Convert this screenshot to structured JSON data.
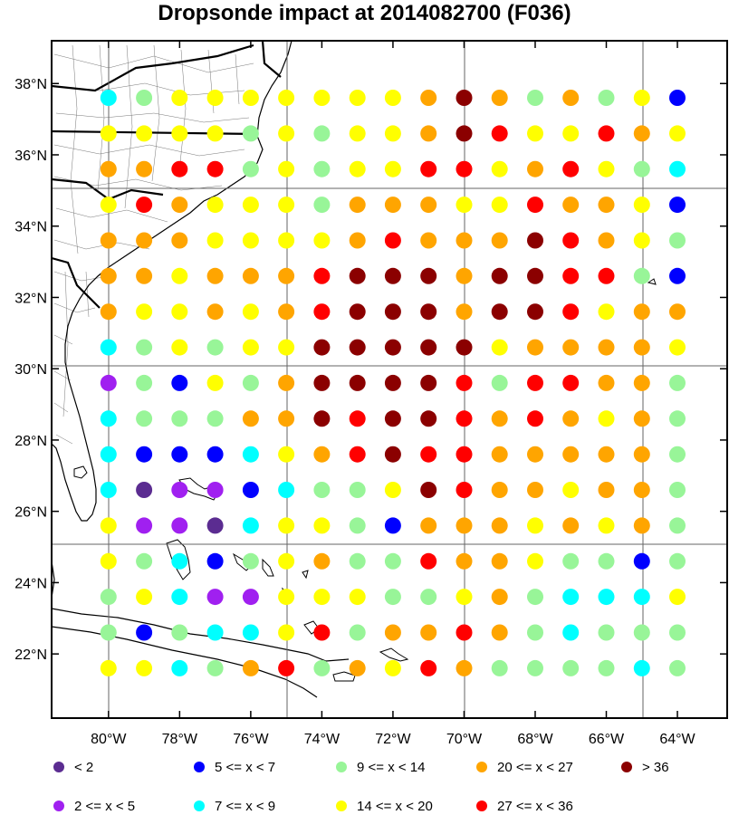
{
  "title": "Dropsonde impact at 2014082700 (F036)",
  "axes": {
    "lon_labels": [
      "80°W",
      "78°W",
      "76°W",
      "74°W",
      "72°W",
      "70°W",
      "68°W",
      "66°W",
      "64°W"
    ],
    "lon_values": [
      -80,
      -78,
      -76,
      -74,
      -72,
      -70,
      -68,
      -66,
      -64
    ],
    "lat_labels": [
      "22°N",
      "24°N",
      "26°N",
      "28°N",
      "30°N",
      "32°N",
      "34°N",
      "36°N",
      "38°N"
    ],
    "lat_values": [
      22,
      24,
      26,
      28,
      30,
      32,
      34,
      36,
      38
    ],
    "lon_range": [
      -81.6,
      -62.6
    ],
    "lat_range": [
      20.2,
      39.2
    ]
  },
  "colors": {
    "c0": "#5b2c91",
    "c1": "#a020f0",
    "c2": "#0000ff",
    "c3": "#00ffff",
    "c4": "#98f598",
    "c5": "#ffff00",
    "c6": "#ffa500",
    "c7": "#ff0000",
    "c8": "#8b0000"
  },
  "legend": [
    {
      "label": "<  2",
      "color_key": "c0"
    },
    {
      "label": "5 <= x <  7",
      "color_key": "c2"
    },
    {
      "label": "9 <= x < 14",
      "color_key": "c4"
    },
    {
      "label": "20 <= x < 27",
      "color_key": "c6"
    },
    {
      "label": "> 36",
      "color_key": "c8"
    },
    {
      "label": "2 <= x <  5",
      "color_key": "c1"
    },
    {
      "label": "7 <= x <  9",
      "color_key": "c3"
    },
    {
      "label": "14 <= x < 20",
      "color_key": "c5"
    },
    {
      "label": "27 <= x < 36",
      "color_key": "c7"
    }
  ],
  "chart_data": {
    "type": "scatter",
    "title": "Dropsonde impact at 2014082700 (F036)",
    "x_lons": [
      -80,
      -79,
      -78,
      -77,
      -76,
      -75,
      -74,
      -73,
      -72,
      -71,
      -70,
      -69,
      -68,
      -67,
      -66,
      -65,
      -64
    ],
    "y_lats": [
      37.6,
      36.6,
      35.6,
      34.6,
      33.6,
      32.6,
      31.6,
      30.6,
      29.6,
      28.6,
      27.6,
      26.6,
      25.6,
      24.6,
      23.6,
      22.6,
      21.6
    ],
    "category_grid": [
      [
        3,
        4,
        5,
        5,
        5,
        5,
        5,
        5,
        5,
        6,
        8,
        6,
        4,
        6,
        4,
        5,
        2
      ],
      [
        5,
        5,
        5,
        5,
        4,
        5,
        4,
        5,
        5,
        6,
        8,
        7,
        5,
        5,
        7,
        6,
        5
      ],
      [
        6,
        6,
        7,
        7,
        4,
        5,
        4,
        5,
        5,
        7,
        7,
        5,
        6,
        7,
        5,
        4,
        3
      ],
      [
        5,
        7,
        6,
        5,
        5,
        5,
        4,
        6,
        6,
        6,
        5,
        5,
        7,
        6,
        6,
        5,
        2
      ],
      [
        6,
        6,
        6,
        5,
        5,
        5,
        5,
        6,
        7,
        6,
        6,
        6,
        8,
        7,
        6,
        5,
        4
      ],
      [
        6,
        6,
        5,
        6,
        6,
        6,
        7,
        8,
        8,
        8,
        6,
        8,
        8,
        7,
        7,
        4,
        2
      ],
      [
        6,
        5,
        5,
        6,
        5,
        6,
        7,
        8,
        8,
        8,
        6,
        8,
        8,
        7,
        5,
        6,
        6
      ],
      [
        3,
        4,
        5,
        4,
        5,
        5,
        8,
        8,
        8,
        8,
        8,
        5,
        6,
        6,
        6,
        6,
        5
      ],
      [
        1,
        4,
        2,
        5,
        4,
        6,
        8,
        8,
        8,
        8,
        7,
        4,
        7,
        7,
        6,
        6,
        4
      ],
      [
        3,
        4,
        4,
        4,
        6,
        6,
        8,
        7,
        8,
        8,
        7,
        6,
        7,
        6,
        5,
        6,
        4
      ],
      [
        3,
        2,
        2,
        2,
        3,
        5,
        6,
        7,
        8,
        7,
        7,
        6,
        6,
        6,
        6,
        6,
        4
      ],
      [
        3,
        0,
        1,
        1,
        2,
        3,
        4,
        4,
        5,
        8,
        7,
        6,
        6,
        5,
        6,
        6,
        4
      ],
      [
        5,
        1,
        1,
        0,
        3,
        5,
        5,
        4,
        2,
        6,
        6,
        6,
        5,
        6,
        5,
        6,
        4
      ],
      [
        5,
        4,
        3,
        2,
        4,
        5,
        6,
        4,
        4,
        7,
        6,
        6,
        5,
        4,
        4,
        2,
        4
      ],
      [
        4,
        5,
        3,
        1,
        1,
        5,
        5,
        5,
        4,
        4,
        5,
        6,
        4,
        3,
        3,
        3,
        5
      ],
      [
        4,
        2,
        4,
        3,
        3,
        5,
        7,
        4,
        6,
        6,
        7,
        6,
        4,
        3,
        4,
        4,
        4
      ],
      [
        5,
        5,
        3,
        4,
        6,
        7,
        4,
        6,
        5,
        7,
        6,
        4,
        4,
        4,
        4,
        3,
        4
      ]
    ],
    "legend_entries": [
      "<  2",
      "2 <= x <  5",
      "5 <= x <  7",
      "7 <= x <  9",
      "9 <= x < 14",
      "14 <= x < 20",
      "20 <= x < 27",
      "27 <= x < 36",
      "> 36"
    ],
    "xlim": [
      -81.6,
      -62.6
    ],
    "ylim": [
      20.2,
      39.2
    ]
  }
}
